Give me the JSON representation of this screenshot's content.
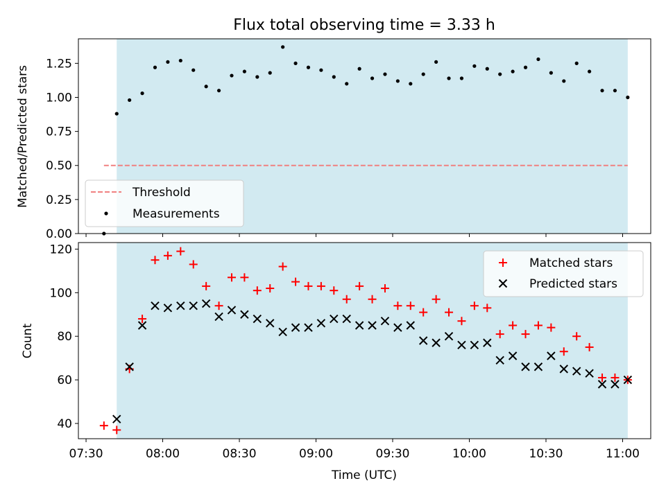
{
  "chart_data": [
    {
      "type": "scatter",
      "title": "Flux total observing time = 3.33 h",
      "xlabel": "",
      "ylabel": "Matched/Predicted stars",
      "xlim": [
        "07:27",
        "11:11"
      ],
      "ylim": [
        0,
        1.43
      ],
      "yticks": [
        0,
        0.25,
        0.5,
        0.75,
        1.0,
        1.25
      ],
      "ytick_labels": [
        "0.00",
        "0.25",
        "0.50",
        "0.75",
        "1.00",
        "1.25"
      ],
      "shaded_span": [
        "07:42",
        "11:02"
      ],
      "shade_color": "#add8e6",
      "threshold": {
        "name": "Threshold",
        "y": 0.5,
        "x_range": [
          "07:37",
          "11:02"
        ],
        "color": "#f08080",
        "style": "dashed"
      },
      "series": [
        {
          "name": "Measurements",
          "color": "#000000",
          "marker": "dot",
          "x": [
            "07:37",
            "07:42",
            "07:47",
            "07:52",
            "07:57",
            "08:02",
            "08:07",
            "08:12",
            "08:17",
            "08:22",
            "08:27",
            "08:32",
            "08:37",
            "08:42",
            "08:47",
            "08:52",
            "08:57",
            "09:02",
            "09:07",
            "09:12",
            "09:17",
            "09:22",
            "09:27",
            "09:32",
            "09:37",
            "09:42",
            "09:47",
            "09:52",
            "09:57",
            "10:02",
            "10:07",
            "10:12",
            "10:17",
            "10:22",
            "10:27",
            "10:32",
            "10:37",
            "10:42",
            "10:47",
            "10:52",
            "10:57",
            "11:02"
          ],
          "y": [
            0.0,
            0.88,
            0.98,
            1.03,
            1.22,
            1.26,
            1.27,
            1.2,
            1.08,
            1.05,
            1.16,
            1.19,
            1.15,
            1.18,
            1.37,
            1.25,
            1.22,
            1.2,
            1.15,
            1.1,
            1.21,
            1.14,
            1.17,
            1.12,
            1.1,
            1.17,
            1.26,
            1.14,
            1.14,
            1.23,
            1.21,
            1.17,
            1.19,
            1.22,
            1.28,
            1.18,
            1.12,
            1.25,
            1.19,
            1.05,
            1.05,
            1.0
          ]
        }
      ],
      "legend": {
        "position": "lower-left",
        "entries": [
          "Threshold",
          "Measurements"
        ]
      }
    },
    {
      "type": "scatter",
      "title": "",
      "xlabel": "Time (UTC)",
      "ylabel": "Count",
      "xlim": [
        "07:27",
        "11:11"
      ],
      "xticks": [
        "07:30",
        "08:00",
        "08:30",
        "09:00",
        "09:30",
        "10:00",
        "10:30",
        "11:00"
      ],
      "ylim": [
        33,
        123
      ],
      "yticks": [
        40,
        60,
        80,
        100,
        120
      ],
      "shaded_span": [
        "07:42",
        "11:02"
      ],
      "shade_color": "#add8e6",
      "series": [
        {
          "name": "Matched stars",
          "color": "#ff0000",
          "marker": "plus",
          "x": [
            "07:37",
            "07:42",
            "07:47",
            "07:52",
            "07:57",
            "08:02",
            "08:07",
            "08:12",
            "08:17",
            "08:22",
            "08:27",
            "08:32",
            "08:37",
            "08:42",
            "08:47",
            "08:52",
            "08:57",
            "09:02",
            "09:07",
            "09:12",
            "09:17",
            "09:22",
            "09:27",
            "09:32",
            "09:37",
            "09:42",
            "09:47",
            "09:52",
            "09:57",
            "10:02",
            "10:07",
            "10:12",
            "10:17",
            "10:22",
            "10:27",
            "10:32",
            "10:37",
            "10:42",
            "10:47",
            "10:52",
            "10:57",
            "11:02"
          ],
          "y": [
            39,
            37,
            65,
            88,
            115,
            117,
            119,
            113,
            103,
            94,
            107,
            107,
            101,
            102,
            112,
            105,
            103,
            103,
            101,
            97,
            103,
            97,
            102,
            94,
            94,
            91,
            97,
            91,
            87,
            94,
            93,
            81,
            85,
            81,
            85,
            84,
            73,
            80,
            75,
            61,
            61,
            60
          ]
        },
        {
          "name": "Predicted stars",
          "color": "#000000",
          "marker": "x",
          "x": [
            "07:42",
            "07:47",
            "07:52",
            "07:57",
            "08:02",
            "08:07",
            "08:12",
            "08:17",
            "08:22",
            "08:27",
            "08:32",
            "08:37",
            "08:42",
            "08:47",
            "08:52",
            "08:57",
            "09:02",
            "09:07",
            "09:12",
            "09:17",
            "09:22",
            "09:27",
            "09:32",
            "09:37",
            "09:42",
            "09:47",
            "09:52",
            "09:57",
            "10:02",
            "10:07",
            "10:12",
            "10:17",
            "10:22",
            "10:27",
            "10:32",
            "10:37",
            "10:42",
            "10:47",
            "10:52",
            "10:57",
            "11:02"
          ],
          "y": [
            42,
            66,
            85,
            94,
            93,
            94,
            94,
            95,
            89,
            92,
            90,
            88,
            86,
            82,
            84,
            84,
            86,
            88,
            88,
            85,
            85,
            87,
            84,
            85,
            78,
            77,
            80,
            76,
            76,
            77,
            69,
            71,
            66,
            66,
            71,
            65,
            64,
            63,
            58,
            58,
            60
          ]
        }
      ],
      "legend": {
        "position": "top-right",
        "entries": [
          "Matched stars",
          "Predicted stars"
        ]
      }
    }
  ]
}
